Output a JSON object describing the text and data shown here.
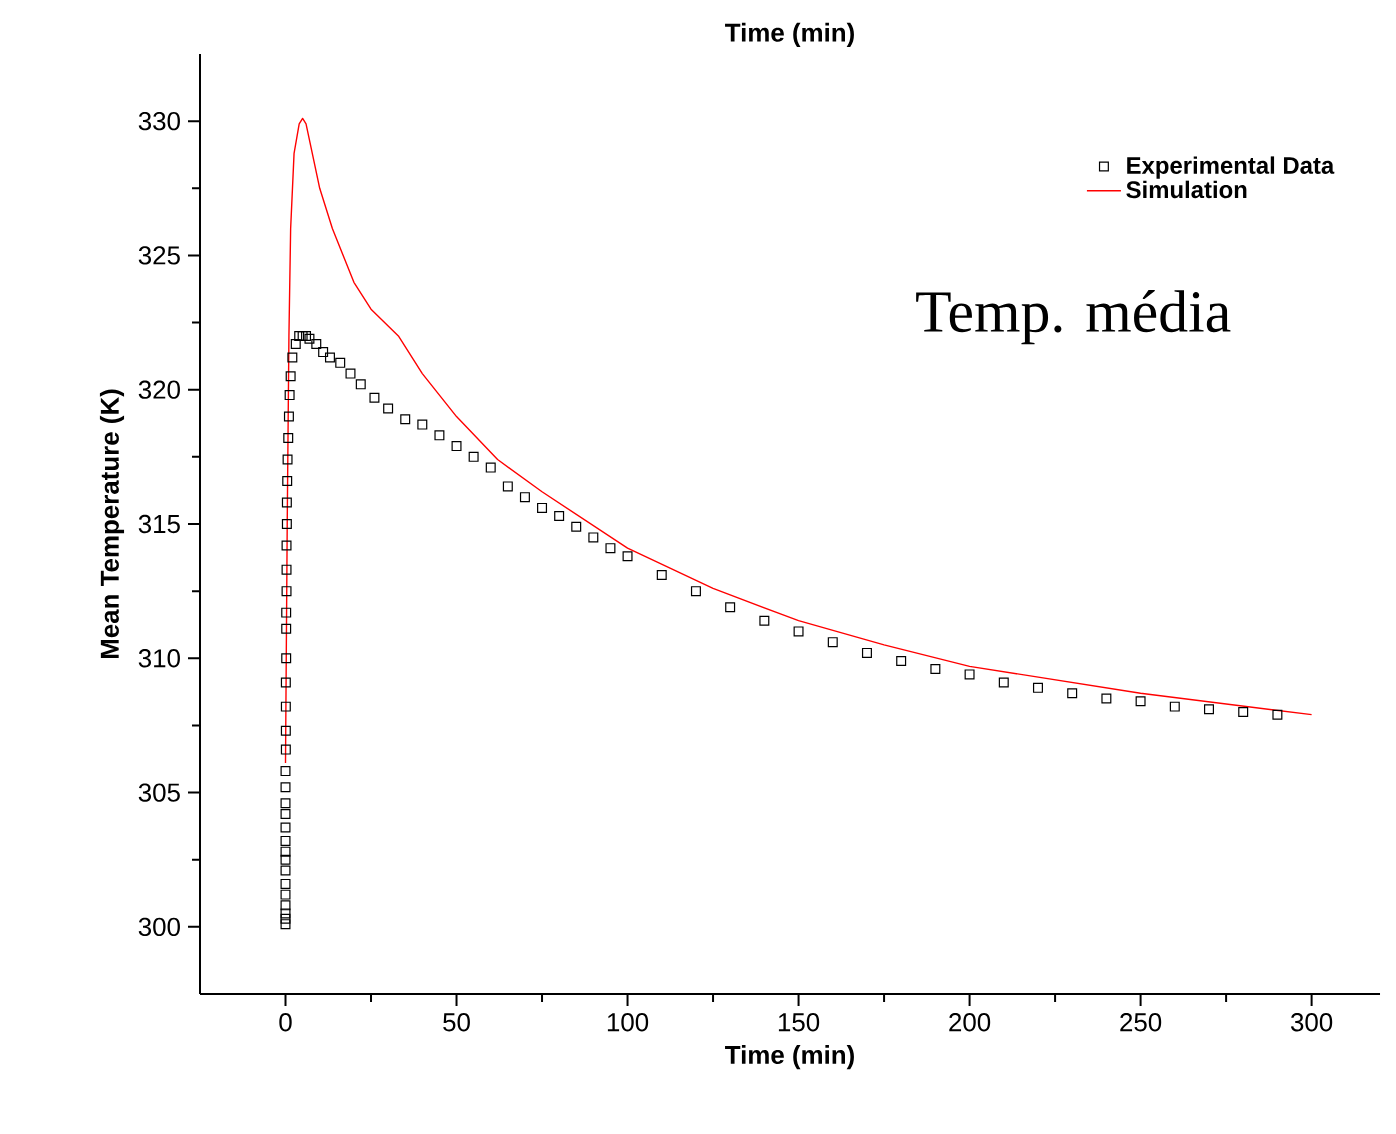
{
  "chart_data": {
    "type": "line",
    "xlabel": "Time (min)",
    "ylabel": "Mean Temperature (K)",
    "annotations": [
      "Time (min)",
      "Temp. média"
    ],
    "xlim": [
      -25,
      320
    ],
    "ylim": [
      297.5,
      332.5
    ],
    "xticks": [
      0,
      50,
      100,
      150,
      200,
      250,
      300
    ],
    "yticks": [
      300,
      305,
      310,
      315,
      320,
      325,
      330
    ],
    "legend": "top right",
    "grid": false,
    "series": [
      {
        "name": "Experimental Data",
        "type": "scatter",
        "marker": "square",
        "color": "#000000",
        "x": [
          0,
          0,
          0,
          0,
          0,
          0,
          0,
          0,
          0,
          0,
          0,
          0,
          0,
          0,
          0,
          0.1,
          0.1,
          0.1,
          0.1,
          0.2,
          0.2,
          0.2,
          0.3,
          0.3,
          0.3,
          0.4,
          0.4,
          0.5,
          0.6,
          0.8,
          1,
          1.2,
          1.5,
          2,
          3,
          4,
          5,
          6,
          7,
          9,
          11,
          13,
          16,
          19,
          22,
          26,
          30,
          35,
          40,
          45,
          50,
          55,
          60,
          65,
          70,
          75,
          80,
          85,
          90,
          95,
          100,
          110,
          120,
          130,
          140,
          150,
          160,
          170,
          180,
          190,
          200,
          210,
          220,
          230,
          240,
          250,
          260,
          270,
          280,
          290
        ],
        "values": [
          300.1,
          300.3,
          300.5,
          300.8,
          301.2,
          301.6,
          302.1,
          302.5,
          302.8,
          303.2,
          303.7,
          304.2,
          304.6,
          305.2,
          305.8,
          306.6,
          307.3,
          308.2,
          309.1,
          310,
          311.1,
          311.7,
          312.5,
          313.3,
          314.2,
          315,
          315.8,
          316.6,
          317.4,
          318.2,
          319,
          319.8,
          320.5,
          321.2,
          321.7,
          322,
          322,
          322,
          321.9,
          321.7,
          321.4,
          321.2,
          321.0,
          320.6,
          320.2,
          319.7,
          319.3,
          318.9,
          318.7,
          318.3,
          317.9,
          317.5,
          317.1,
          316.4,
          316.0,
          315.6,
          315.3,
          314.9,
          314.5,
          314.1,
          313.8,
          313.1,
          312.5,
          311.9,
          311.4,
          311.0,
          310.6,
          310.2,
          309.9,
          309.6,
          309.4,
          309.1,
          308.9,
          308.7,
          308.5,
          308.4,
          308.2,
          308.1,
          308.0,
          307.9
        ]
      },
      {
        "name": "Simulation",
        "marker": "none",
        "color": "#ff0000",
        "x": [
          0,
          0.5,
          1,
          1.5,
          2.5,
          4,
          5,
          6,
          8,
          10,
          13.7,
          20,
          25,
          33,
          40,
          50,
          62,
          75,
          100,
          125,
          150,
          175,
          200,
          225,
          250,
          275,
          300
        ],
        "values": [
          306.1,
          315,
          322,
          326,
          328.8,
          329.9,
          330.1,
          329.9,
          328.7,
          327.5,
          326,
          324,
          323,
          322,
          320.6,
          319,
          317.4,
          316.2,
          314.1,
          312.6,
          311.4,
          310.5,
          309.7,
          309.2,
          308.7,
          308.3,
          307.9
        ]
      }
    ]
  }
}
